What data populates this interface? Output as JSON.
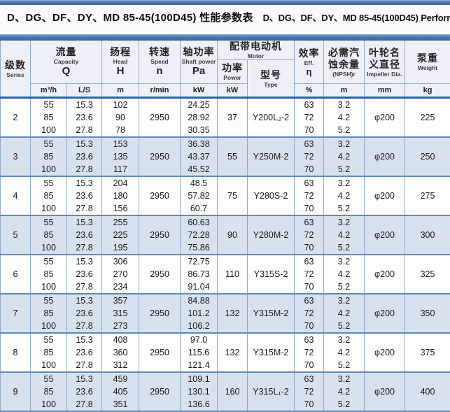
{
  "title": {
    "cn": "D、DG、DF、DY、MD 85-45(100D45) 性能参数表",
    "en": "D、DG、DF、DY、MD 85-45(100D45) Performance Data"
  },
  "colors": {
    "accent_blue": "#4a74ae",
    "header_bg": "#edf1f7",
    "alt_row_bg": "#d8e1ee",
    "grid_line": "#93abcb"
  },
  "header": {
    "series": {
      "cn": "级数",
      "en": "Series"
    },
    "capacity": {
      "cn": "流量",
      "en": "Capacity",
      "sym": "Q",
      "units": [
        "m³/h",
        "L/S"
      ]
    },
    "head": {
      "cn": "扬程",
      "en": "Head",
      "sym": "H",
      "unit": "m"
    },
    "speed": {
      "cn": "转速",
      "en": "Speed",
      "sym": "n",
      "unit": "r/min"
    },
    "shaft_power": {
      "cn": "轴功率",
      "en": "Shaft power",
      "sym": "Pa",
      "unit": "kW"
    },
    "motor": {
      "cn": "配带电动机",
      "en": "Motor",
      "power": {
        "cn": "功率",
        "en": "Power",
        "unit": "kW"
      },
      "type": {
        "cn": "型号",
        "en": "Type"
      }
    },
    "efficiency": {
      "cn": "效率",
      "en": "Eff.",
      "sym": "η",
      "unit": "%"
    },
    "npsh": {
      "cn": "必需汽蚀余量",
      "en": "(NPSH)r",
      "unit": "m"
    },
    "impeller": {
      "cn": "叶轮名义直径",
      "en": "Impeller Dia.",
      "unit": "mm"
    },
    "weight": {
      "cn": "泵重",
      "en": "Weight",
      "unit": "kg"
    }
  },
  "rows": [
    {
      "series": "2",
      "flow_m3h": [
        "55",
        "85",
        "100"
      ],
      "flow_ls": [
        "15.3",
        "23.6",
        "27.8"
      ],
      "head_m": [
        "102",
        "90",
        "78"
      ],
      "speed": "2950",
      "shaft_kw": [
        "24.25",
        "28.92",
        "30.35"
      ],
      "motor_kw": "37",
      "motor_type": "Y200L₂-2",
      "eff": [
        "63",
        "72",
        "70"
      ],
      "npsh_m": [
        "3.2",
        "4.2",
        "5.2"
      ],
      "impeller": "φ200",
      "weight_kg": "225"
    },
    {
      "series": "3",
      "flow_m3h": [
        "55",
        "85",
        "100"
      ],
      "flow_ls": [
        "15.3",
        "23.6",
        "27.8"
      ],
      "head_m": [
        "153",
        "135",
        "117"
      ],
      "speed": "2950",
      "shaft_kw": [
        "36.38",
        "43.37",
        "45.52"
      ],
      "motor_kw": "55",
      "motor_type": "Y250M-2",
      "eff": [
        "63",
        "72",
        "70"
      ],
      "npsh_m": [
        "3.2",
        "4.2",
        "5.2"
      ],
      "impeller": "φ200",
      "weight_kg": "250"
    },
    {
      "series": "4",
      "flow_m3h": [
        "55",
        "85",
        "100"
      ],
      "flow_ls": [
        "15.3",
        "23.6",
        "27.8"
      ],
      "head_m": [
        "204",
        "180",
        "156"
      ],
      "speed": "2950",
      "shaft_kw": [
        "48.5",
        "57.82",
        "60.7"
      ],
      "motor_kw": "75",
      "motor_type": "Y280S-2",
      "eff": [
        "63",
        "72",
        "70"
      ],
      "npsh_m": [
        "3.2",
        "4.2",
        "5.2"
      ],
      "impeller": "φ200",
      "weight_kg": "275"
    },
    {
      "series": "5",
      "flow_m3h": [
        "55",
        "85",
        "100"
      ],
      "flow_ls": [
        "15.3",
        "23.6",
        "27.8"
      ],
      "head_m": [
        "255",
        "225",
        "195"
      ],
      "speed": "2950",
      "shaft_kw": [
        "60.63",
        "72.28",
        "75.86"
      ],
      "motor_kw": "90",
      "motor_type": "Y280M-2",
      "eff": [
        "63",
        "72",
        "70"
      ],
      "npsh_m": [
        "3.2",
        "4.2",
        "5.2"
      ],
      "impeller": "φ200",
      "weight_kg": "300"
    },
    {
      "series": "6",
      "flow_m3h": [
        "55",
        "85",
        "100"
      ],
      "flow_ls": [
        "15.3",
        "23.6",
        "27.8"
      ],
      "head_m": [
        "306",
        "270",
        "234"
      ],
      "speed": "2950",
      "shaft_kw": [
        "72.75",
        "86.73",
        "91.04"
      ],
      "motor_kw": "110",
      "motor_type": "Y315S-2",
      "eff": [
        "63",
        "72",
        "70"
      ],
      "npsh_m": [
        "3.2",
        "4.2",
        "5.2"
      ],
      "impeller": "φ200",
      "weight_kg": "325"
    },
    {
      "series": "7",
      "flow_m3h": [
        "55",
        "85",
        "100"
      ],
      "flow_ls": [
        "15.3",
        "23.6",
        "27.8"
      ],
      "head_m": [
        "357",
        "315",
        "273"
      ],
      "speed": "2950",
      "shaft_kw": [
        "84.88",
        "101.2",
        "106.2"
      ],
      "motor_kw": "132",
      "motor_type": "Y315M-2",
      "eff": [
        "63",
        "72",
        "70"
      ],
      "npsh_m": [
        "3.2",
        "4.2",
        "5.2"
      ],
      "impeller": "φ200",
      "weight_kg": "350"
    },
    {
      "series": "8",
      "flow_m3h": [
        "55",
        "85",
        "100"
      ],
      "flow_ls": [
        "15.3",
        "23.6",
        "27.8"
      ],
      "head_m": [
        "408",
        "360",
        "312"
      ],
      "speed": "2950",
      "shaft_kw": [
        "97.0",
        "115.6",
        "121.4"
      ],
      "motor_kw": "132",
      "motor_type": "Y315M-2",
      "eff": [
        "63",
        "72",
        "70"
      ],
      "npsh_m": [
        "3.2",
        "4.2",
        "5.2"
      ],
      "impeller": "φ200",
      "weight_kg": "375"
    },
    {
      "series": "9",
      "flow_m3h": [
        "55",
        "85",
        "100"
      ],
      "flow_ls": [
        "15.3",
        "23.6",
        "27.8"
      ],
      "head_m": [
        "459",
        "405",
        "351"
      ],
      "speed": "2950",
      "shaft_kw": [
        "109.1",
        "130.1",
        "136.6"
      ],
      "motor_kw": "160",
      "motor_type": "Y315L₁-2",
      "eff": [
        "63",
        "72",
        "70"
      ],
      "npsh_m": [
        "3.2",
        "4.2",
        "5.2"
      ],
      "impeller": "φ200",
      "weight_kg": "400"
    }
  ]
}
